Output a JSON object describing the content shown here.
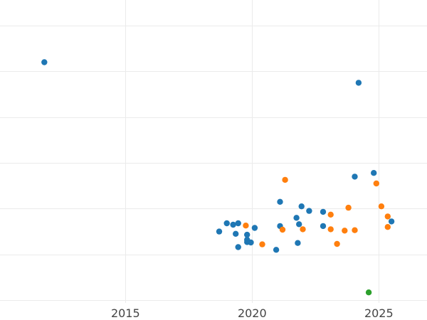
{
  "chart_data": {
    "type": "scatter",
    "title": "",
    "xlabel": "",
    "ylabel": "",
    "xlim": [
      2010.05,
      2026.9
    ],
    "ylim": [
      -0.06,
      6.0
    ],
    "grid": true,
    "x_ticks": [
      2015,
      2020,
      2025
    ],
    "x_tick_labels": [
      "2015",
      "2020",
      "2025"
    ],
    "y_gridlines": [
      0,
      1,
      2,
      3,
      4,
      5,
      6
    ],
    "show_y_tick_labels": false,
    "series": [
      {
        "color": "#1f77b4",
        "points": [
          {
            "x": 2011.8,
            "y": 5.2
          },
          {
            "x": 2024.2,
            "y": 4.75
          },
          {
            "x": 2024.8,
            "y": 2.78
          },
          {
            "x": 2024.05,
            "y": 2.7
          },
          {
            "x": 2021.1,
            "y": 2.15
          },
          {
            "x": 2021.95,
            "y": 2.05
          },
          {
            "x": 2022.25,
            "y": 1.95
          },
          {
            "x": 2022.8,
            "y": 1.93
          },
          {
            "x": 2021.75,
            "y": 1.8
          },
          {
            "x": 2025.5,
            "y": 1.72
          },
          {
            "x": 2019.0,
            "y": 1.68
          },
          {
            "x": 2019.45,
            "y": 1.68
          },
          {
            "x": 2019.25,
            "y": 1.65
          },
          {
            "x": 2021.85,
            "y": 1.66
          },
          {
            "x": 2021.1,
            "y": 1.62
          },
          {
            "x": 2022.8,
            "y": 1.62
          },
          {
            "x": 2020.1,
            "y": 1.58
          },
          {
            "x": 2018.7,
            "y": 1.5
          },
          {
            "x": 2019.35,
            "y": 1.45
          },
          {
            "x": 2019.8,
            "y": 1.43
          },
          {
            "x": 2019.8,
            "y": 1.32
          },
          {
            "x": 2019.8,
            "y": 1.27
          },
          {
            "x": 2019.95,
            "y": 1.26
          },
          {
            "x": 2021.8,
            "y": 1.25
          },
          {
            "x": 2019.45,
            "y": 1.16
          },
          {
            "x": 2020.95,
            "y": 1.1
          }
        ]
      },
      {
        "color": "#ff7f0e",
        "points": [
          {
            "x": 2021.3,
            "y": 2.63
          },
          {
            "x": 2024.9,
            "y": 2.55
          },
          {
            "x": 2025.1,
            "y": 2.05
          },
          {
            "x": 2023.8,
            "y": 2.02
          },
          {
            "x": 2023.1,
            "y": 1.87
          },
          {
            "x": 2025.35,
            "y": 1.83
          },
          {
            "x": 2019.75,
            "y": 1.63
          },
          {
            "x": 2025.35,
            "y": 1.6
          },
          {
            "x": 2021.2,
            "y": 1.54
          },
          {
            "x": 2022.0,
            "y": 1.55
          },
          {
            "x": 2023.1,
            "y": 1.55
          },
          {
            "x": 2023.65,
            "y": 1.52
          },
          {
            "x": 2024.05,
            "y": 1.53
          },
          {
            "x": 2020.4,
            "y": 1.22
          },
          {
            "x": 2023.35,
            "y": 1.23
          }
        ]
      },
      {
        "color": "#2ca02c",
        "points": [
          {
            "x": 2024.6,
            "y": 0.17
          }
        ]
      }
    ]
  },
  "colors": {
    "background": "#ffffff",
    "grid": "#ebebeb",
    "tick_text": "#444444"
  }
}
